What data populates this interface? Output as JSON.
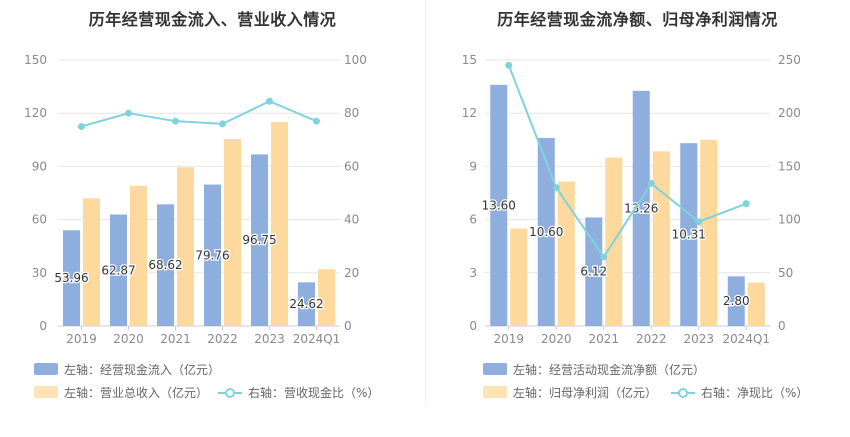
{
  "colors": {
    "bar_primary": "#8eaedd",
    "bar_secondary": "#fdd99d",
    "line": "#7fd3dc",
    "grid": "#e6e6e6",
    "axis_text": "#8a8a8a"
  },
  "chart_data": [
    {
      "type": "bar",
      "title": "历年经营现金流入、营业收入情况",
      "categories": [
        "2019",
        "2020",
        "2021",
        "2022",
        "2023",
        "2024Q1"
      ],
      "left_axis": {
        "range": [
          0,
          150
        ],
        "ticks": [
          "0",
          "30",
          "60",
          "90",
          "120",
          "150"
        ]
      },
      "right_axis": {
        "range": [
          0,
          100
        ],
        "ticks": [
          "0",
          "20",
          "40",
          "60",
          "80",
          "100"
        ]
      },
      "series": [
        {
          "name": "左轴：经营现金流入（亿元）",
          "type": "bar",
          "axis": "left",
          "values": [
            53.96,
            62.87,
            68.62,
            79.76,
            96.75,
            24.62
          ],
          "labels": [
            "53.96",
            "62.87",
            "68.62",
            "79.76",
            "96.75",
            "24.62"
          ]
        },
        {
          "name": "左轴：营业总收入（亿元）",
          "type": "bar",
          "axis": "left",
          "values": [
            72,
            79,
            89.5,
            105.5,
            115,
            32
          ]
        },
        {
          "name": "右轴：营收现金比（%）",
          "type": "line",
          "axis": "right",
          "values": [
            75,
            80,
            77,
            76,
            84.5,
            77
          ]
        }
      ]
    },
    {
      "type": "bar",
      "title": "历年经营现金流净额、归母净利润情况",
      "categories": [
        "2019",
        "2020",
        "2021",
        "2022",
        "2023",
        "2024Q1"
      ],
      "left_axis": {
        "range": [
          0,
          15
        ],
        "ticks": [
          "0",
          "3",
          "6",
          "9",
          "12",
          "15"
        ]
      },
      "right_axis": {
        "range": [
          0,
          250
        ],
        "ticks": [
          "0",
          "50",
          "100",
          "150",
          "200",
          "250"
        ]
      },
      "series": [
        {
          "name": "左轴：经营活动现金流净额（亿元）",
          "type": "bar",
          "axis": "left",
          "values": [
            13.6,
            10.6,
            6.12,
            13.26,
            10.31,
            2.8
          ],
          "labels": [
            "13.60",
            "10.60",
            "6.12",
            "13.26",
            "10.31",
            "2.80"
          ]
        },
        {
          "name": "左轴：归母净利润（亿元）",
          "type": "bar",
          "axis": "left",
          "values": [
            5.5,
            8.15,
            9.5,
            9.85,
            10.5,
            2.45
          ]
        },
        {
          "name": "右轴：净现比（%）",
          "type": "line",
          "axis": "right",
          "values": [
            245,
            130,
            65,
            134,
            98,
            115
          ]
        }
      ]
    }
  ]
}
